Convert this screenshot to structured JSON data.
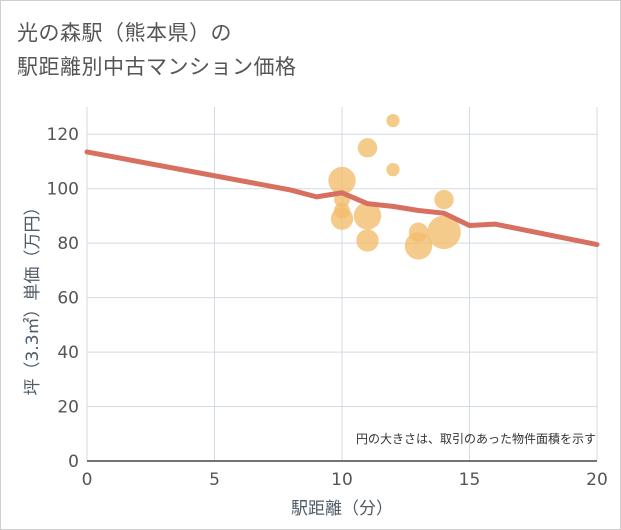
{
  "chart_data": {
    "type": "scatter",
    "title_lines": [
      "光の森駅（熊本県）の",
      "駅距離別中古マンション価格"
    ],
    "xlabel": "駅距離（分）",
    "ylabel": "坪（3.3㎡）単価（万円）",
    "note": "円の大きさは、取引のあった物件面積を示す",
    "xlim": [
      0,
      20
    ],
    "ylim": [
      0,
      130
    ],
    "xticks": [
      0,
      5,
      10,
      15,
      20
    ],
    "yticks": [
      0,
      20,
      40,
      60,
      80,
      100,
      120
    ],
    "grid": true,
    "colors": {
      "bubble": "#f2bd6b",
      "line": "#d87060",
      "grid": "#d3dbe3",
      "text": "#555555"
    },
    "bubbles": [
      {
        "x": 10,
        "y": 103,
        "size": 3
      },
      {
        "x": 10,
        "y": 96,
        "size": 1
      },
      {
        "x": 10,
        "y": 92,
        "size": 1
      },
      {
        "x": 10,
        "y": 89,
        "size": 2
      },
      {
        "x": 11,
        "y": 115,
        "size": 1.5
      },
      {
        "x": 11,
        "y": 90,
        "size": 3
      },
      {
        "x": 11,
        "y": 81,
        "size": 2
      },
      {
        "x": 12,
        "y": 125,
        "size": 0.7
      },
      {
        "x": 12,
        "y": 107,
        "size": 0.7
      },
      {
        "x": 13,
        "y": 84,
        "size": 1.5
      },
      {
        "x": 13,
        "y": 79,
        "size": 3
      },
      {
        "x": 14,
        "y": 96,
        "size": 1.5
      },
      {
        "x": 14,
        "y": 84,
        "size": 4.5
      }
    ],
    "trend_line": {
      "x": [
        0,
        8,
        9,
        10,
        11,
        12,
        13,
        14,
        15,
        16,
        20
      ],
      "y": [
        113.5,
        99.5,
        97,
        98.5,
        94.5,
        93.5,
        92,
        91,
        86.5,
        87,
        79.5
      ]
    }
  }
}
